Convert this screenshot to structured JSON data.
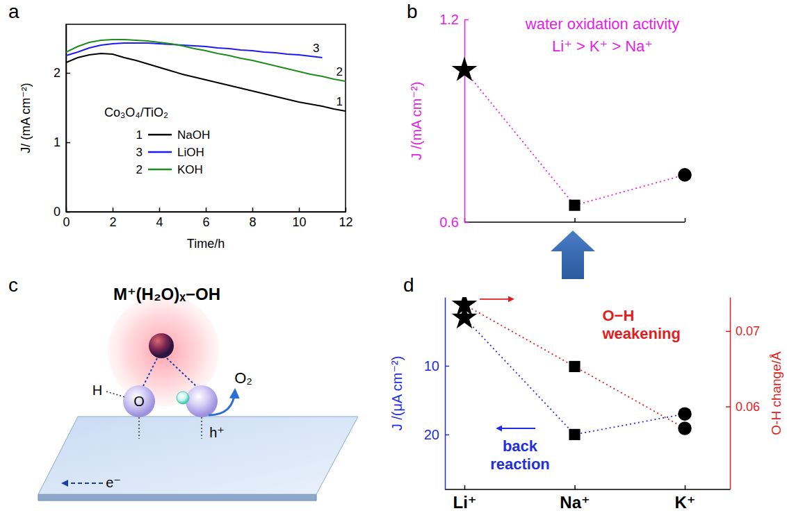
{
  "chart_data": [
    {
      "panel": "a",
      "type": "line",
      "annotation": "Co₃O₄/TiO₂",
      "x_label": "Time/h",
      "y_label": "J/ (mA cm⁻²)",
      "x": [
        0,
        0.5,
        1,
        1.5,
        2,
        2.5,
        3,
        3.5,
        4,
        4.5,
        5,
        5.5,
        6,
        6.5,
        7,
        7.5,
        8,
        8.5,
        9,
        9.5,
        10,
        10.5,
        11,
        11.5,
        12
      ],
      "xlim": [
        0,
        12
      ],
      "xticks": [
        0,
        2,
        4,
        6,
        8,
        10,
        12
      ],
      "ylim": [
        0,
        2.7
      ],
      "yticks": [
        0,
        1,
        2
      ],
      "legend": "lower left",
      "series": [
        {
          "name": "NaOH",
          "label": "1",
          "color": "#000000",
          "values": [
            2.15,
            2.22,
            2.26,
            2.28,
            2.27,
            2.22,
            2.18,
            2.13,
            2.08,
            2.03,
            1.98,
            1.94,
            1.9,
            1.86,
            1.82,
            1.78,
            1.74,
            1.7,
            1.66,
            1.62,
            1.58,
            1.55,
            1.52,
            1.48,
            1.45
          ]
        },
        {
          "name": "LiOH",
          "label": "3",
          "color": "#1c1cf0",
          "values": [
            2.25,
            2.3,
            2.36,
            2.4,
            2.42,
            2.43,
            2.43,
            2.43,
            2.42,
            2.41,
            2.4,
            2.39,
            2.38,
            2.36,
            2.35,
            2.33,
            2.32,
            2.3,
            2.29,
            2.27,
            2.26,
            2.24,
            2.22,
            null,
            null
          ]
        },
        {
          "name": "KOH",
          "label": "2",
          "color": "#1e8c1e",
          "values": [
            2.3,
            2.38,
            2.44,
            2.47,
            2.48,
            2.48,
            2.47,
            2.46,
            2.44,
            2.42,
            2.39,
            2.35,
            2.32,
            2.28,
            2.25,
            2.21,
            2.18,
            2.14,
            2.1,
            2.06,
            2.02,
            1.98,
            1.95,
            1.91,
            1.88
          ]
        }
      ]
    },
    {
      "panel": "b",
      "type": "line",
      "title": "water oxidation activity",
      "subtitle": "Li⁺ > K⁺ > Na⁺",
      "categories": [
        null,
        null,
        null
      ],
      "y_label": "J /(mA cm⁻²)",
      "ylim": [
        0.6,
        1.2
      ],
      "yticks": [
        0.6,
        1.2
      ],
      "line_style": "dotted",
      "color": "#e51ee5",
      "values": [
        1.05,
        0.65,
        0.74
      ]
    },
    {
      "panel": "c",
      "type": "diagram",
      "title": "M⁺(H₂O)ₓ−OH",
      "labels": [
        "H",
        "O",
        "O₂",
        "h⁺",
        "e⁻"
      ]
    },
    {
      "panel": "d",
      "type": "line",
      "categories": [
        "Li⁺",
        "Na⁺",
        "K⁺"
      ],
      "y_label": "J /(μA cm⁻²)",
      "ylim": [
        28,
        0
      ],
      "yticks": [
        10,
        20
      ],
      "y2_label": "O-H change/Å",
      "y2lim": [
        0.049,
        0.0745
      ],
      "y2ticks": [
        0.06,
        0.07
      ],
      "line_style": "dotted",
      "series": [
        {
          "name": "back reaction",
          "color": "#1f2fe0",
          "values": [
            3,
            20,
            17
          ]
        },
        {
          "name": "O−H weakening",
          "color": "#e01e1e",
          "axis": "y2",
          "values": [
            0.0735,
            0.0653,
            0.0571
          ]
        }
      ]
    }
  ]
}
